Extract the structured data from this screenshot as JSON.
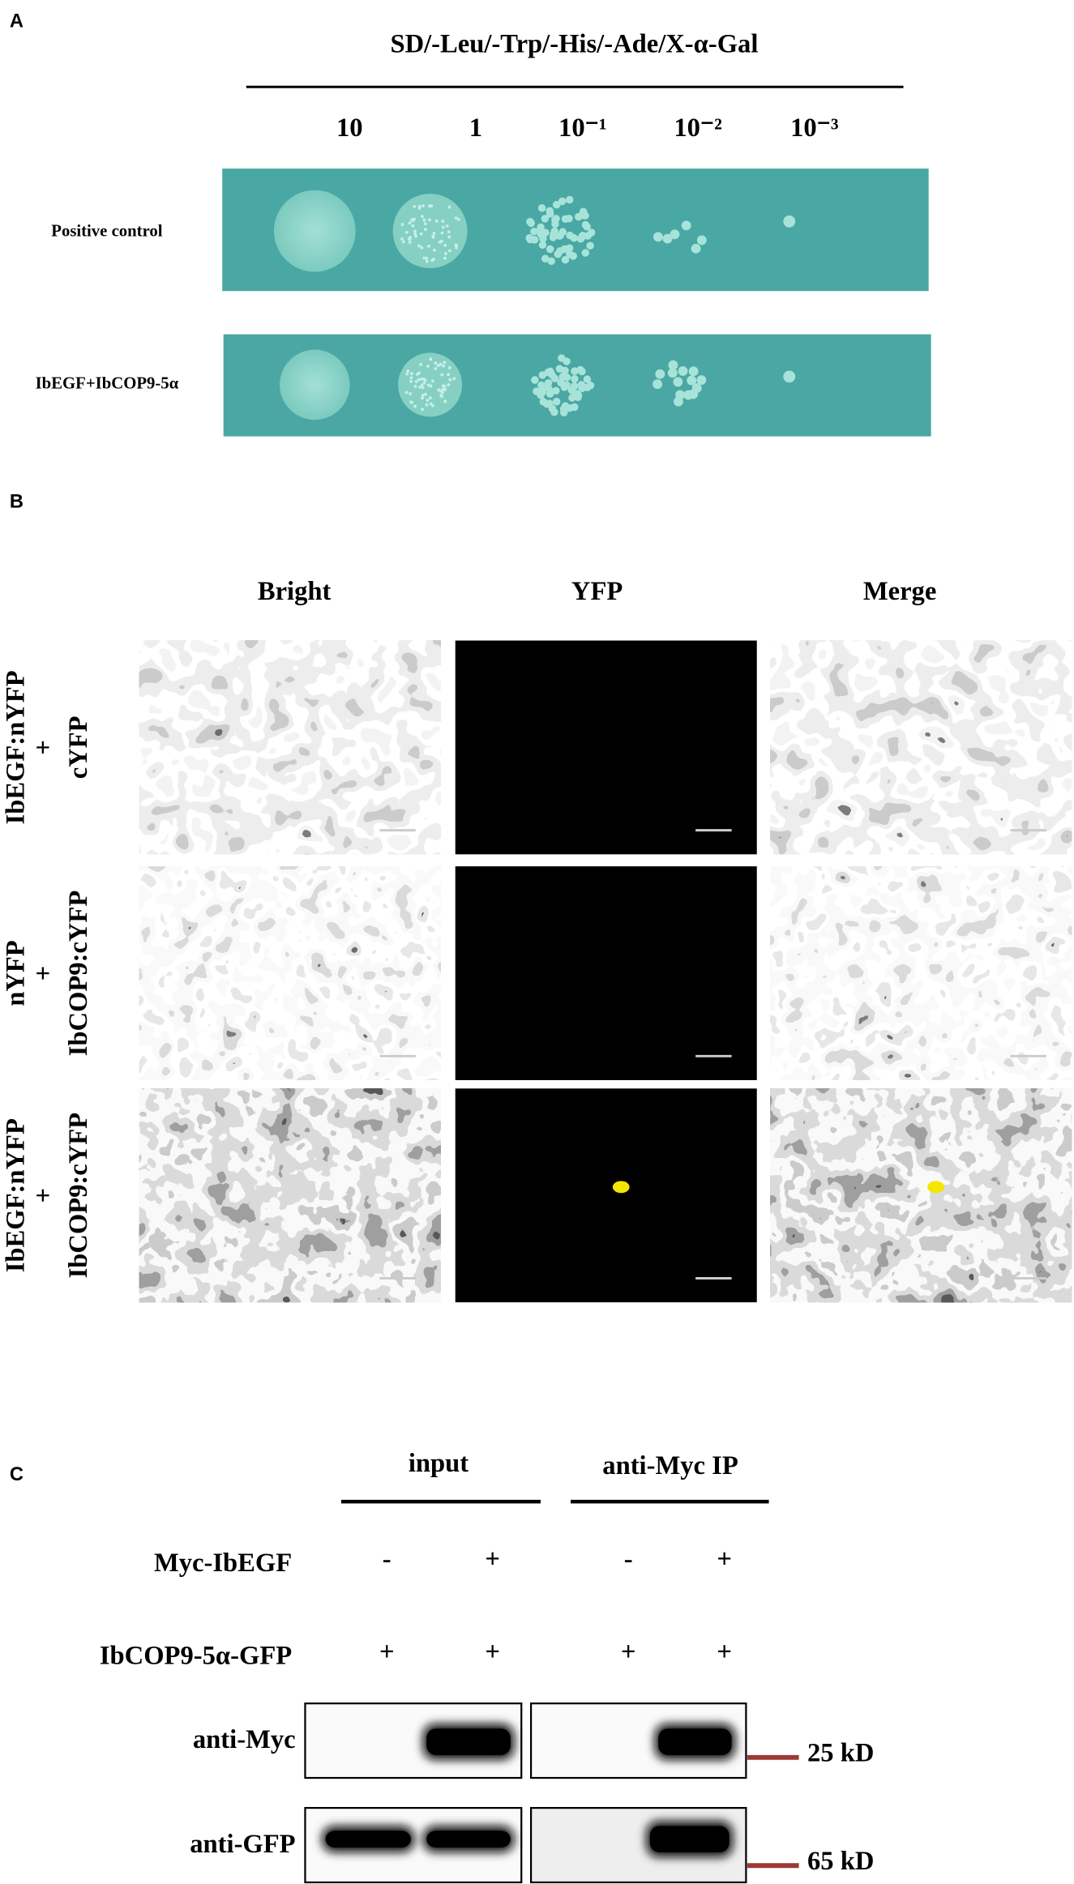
{
  "panel_a": {
    "label": "A",
    "title": "SD/-Leu/-Trp/-His/-Ade/X-α-Gal",
    "dilutions": [
      "10",
      "1",
      "10⁻¹",
      "10⁻²",
      "10⁻³"
    ],
    "rows": [
      "Positive control",
      "IbEGF+IbCOP9-5α"
    ]
  },
  "panel_b": {
    "label": "B",
    "columns": [
      "Bright",
      "YFP",
      "Merge"
    ],
    "rows": [
      [
        "IbEGF:nYFP",
        "+",
        "cYFP"
      ],
      [
        "nYFP",
        "+",
        "IbCOP9:cYFP"
      ],
      [
        "IbEGF:nYFP",
        "+",
        "IbCOP9:cYFP"
      ]
    ]
  },
  "panel_c": {
    "label": "C",
    "groups": [
      "input",
      "anti-Myc IP"
    ],
    "conditions": [
      {
        "name": "Myc-IbEGF",
        "signs": [
          "-",
          "+",
          "-",
          "+"
        ]
      },
      {
        "name": "IbCOP9-5α-GFP",
        "signs": [
          "+",
          "+",
          "+",
          "+"
        ]
      }
    ],
    "blots": [
      {
        "antibody": "anti-Myc",
        "marker": "25 kD"
      },
      {
        "antibody": "anti-GFP",
        "marker": "65 kD"
      }
    ]
  }
}
